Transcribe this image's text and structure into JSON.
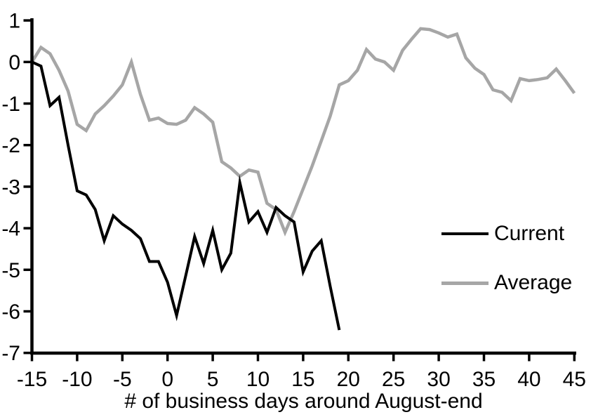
{
  "chart_data": {
    "type": "line",
    "title": "",
    "xlabel": "# of business days around August-end",
    "ylabel": "",
    "xlim": [
      -15,
      45
    ],
    "ylim": [
      -7,
      1
    ],
    "x_ticks": [
      -15,
      -10,
      -5,
      0,
      5,
      10,
      15,
      20,
      25,
      30,
      35,
      40,
      45
    ],
    "y_ticks": [
      1,
      0,
      -1,
      -2,
      -3,
      -4,
      -5,
      -6,
      -7
    ],
    "grid": false,
    "legend_position": "right-middle",
    "series": [
      {
        "name": "Current",
        "color": "#000000",
        "width": 4,
        "x": [
          -15,
          -14,
          -13,
          -12,
          -11,
          -10,
          -9,
          -8,
          -7,
          -6,
          -5,
          -4,
          -3,
          -2,
          -1,
          0,
          1,
          2,
          3,
          4,
          5,
          6,
          7,
          8,
          9,
          10,
          11,
          12,
          13,
          14,
          15,
          16,
          17,
          18,
          19
        ],
        "values": [
          0,
          -0.1,
          -1.05,
          -0.85,
          -2.0,
          -3.1,
          -3.2,
          -3.55,
          -4.3,
          -3.7,
          -3.9,
          -4.05,
          -4.25,
          -4.8,
          -4.8,
          -5.3,
          -6.1,
          -5.15,
          -4.2,
          -4.85,
          -4.05,
          -5.0,
          -4.6,
          -2.9,
          -3.85,
          -3.6,
          -4.1,
          -3.5,
          -3.7,
          -3.85,
          -5.05,
          -4.55,
          -4.3,
          -5.4,
          -6.45
        ]
      },
      {
        "name": "Average",
        "color": "#a6a6a6",
        "width": 4.5,
        "x": [
          -15,
          -14,
          -13,
          -12,
          -11,
          -10,
          -9,
          -8,
          -7,
          -6,
          -5,
          -4,
          -3,
          -2,
          -1,
          0,
          1,
          2,
          3,
          4,
          5,
          6,
          7,
          8,
          9,
          10,
          11,
          12,
          13,
          14,
          15,
          16,
          17,
          18,
          19,
          20,
          21,
          22,
          23,
          24,
          25,
          26,
          27,
          28,
          29,
          30,
          31,
          32,
          33,
          34,
          35,
          36,
          37,
          38,
          39,
          40,
          41,
          42,
          43,
          44,
          45
        ],
        "values": [
          0,
          0.35,
          0.2,
          -0.2,
          -0.7,
          -1.5,
          -1.65,
          -1.25,
          -1.05,
          -0.82,
          -0.55,
          0.0,
          -0.78,
          -1.4,
          -1.35,
          -1.48,
          -1.5,
          -1.4,
          -1.1,
          -1.25,
          -1.45,
          -2.4,
          -2.55,
          -2.75,
          -2.6,
          -2.65,
          -3.4,
          -3.55,
          -4.1,
          -3.6,
          -3.05,
          -2.5,
          -1.9,
          -1.3,
          -0.55,
          -0.45,
          -0.2,
          0.3,
          0.07,
          0.0,
          -0.2,
          0.28,
          0.55,
          0.8,
          0.78,
          0.7,
          0.6,
          0.67,
          0.1,
          -0.15,
          -0.3,
          -0.67,
          -0.73,
          -0.93,
          -0.4,
          -0.45,
          -0.42,
          -0.38,
          -0.17,
          -0.45,
          -0.75
        ]
      }
    ]
  },
  "legend": {
    "current_label": "Current",
    "average_label": "Average"
  },
  "colors": {
    "current": "#000000",
    "average": "#a6a6a6",
    "axis": "#000000",
    "text": "#000000",
    "background": "#ffffff"
  }
}
